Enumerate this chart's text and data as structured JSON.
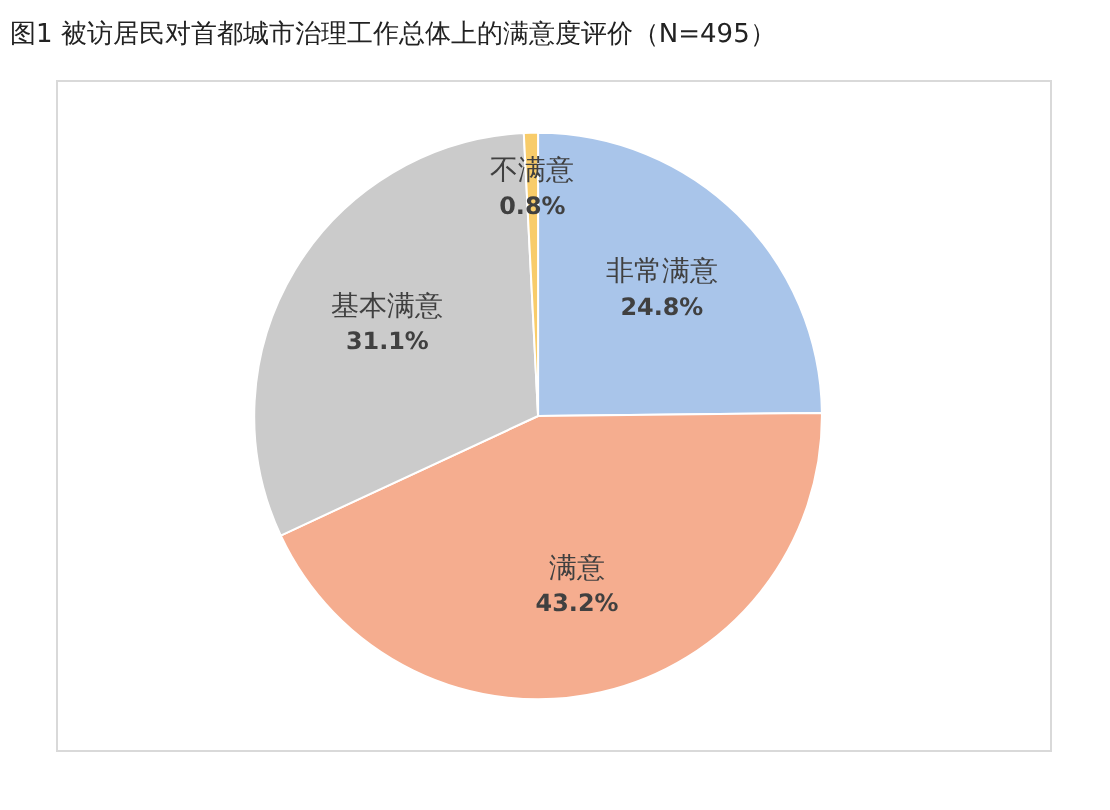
{
  "chart_data": {
    "type": "pie",
    "title": "图1 被访居民对首都城市治理工作总体上的满意度评价（N=495）",
    "categories": [
      "非常满意",
      "满意",
      "基本满意",
      "不满意"
    ],
    "values": [
      24.8,
      43.2,
      31.1,
      0.8
    ],
    "value_labels": [
      "24.8%",
      "43.2%",
      "31.1%",
      "0.8%"
    ],
    "colors": [
      "#a9c5ea",
      "#f5ad8f",
      "#cbcbcb",
      "#f8cc6a"
    ],
    "legend": false
  }
}
